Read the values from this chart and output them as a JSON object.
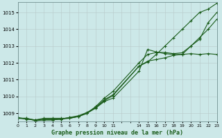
{
  "title": "Graphe pression niveau de la mer (hPa)",
  "bg_color": "#cce8e8",
  "grid_color": "#b8c8c8",
  "line_color": "#1a5c1a",
  "xlim": [
    0,
    23
  ],
  "ylim": [
    1008.5,
    1015.6
  ],
  "yticks": [
    1009,
    1010,
    1011,
    1012,
    1013,
    1014,
    1015
  ],
  "xtick_positions": [
    0,
    1,
    2,
    3,
    4,
    5,
    6,
    7,
    8,
    9,
    10,
    11,
    14,
    15,
    16,
    17,
    18,
    19,
    20,
    21,
    22,
    23
  ],
  "xtick_labels": [
    "0",
    "1",
    "2",
    "3",
    "4",
    "5",
    "6",
    "7",
    "8",
    "9",
    "10",
    "11",
    "14",
    "15",
    "16",
    "17",
    "18",
    "19",
    "20",
    "21",
    "22",
    "23"
  ],
  "series1_x": [
    0,
    1,
    2,
    3,
    4,
    5,
    6,
    7,
    8,
    9,
    10,
    11,
    14,
    15,
    16,
    17,
    18,
    19,
    20,
    21,
    22,
    23
  ],
  "series1_y": [
    1008.7,
    1008.7,
    1008.6,
    1008.7,
    1008.7,
    1008.7,
    1008.7,
    1008.8,
    1009.0,
    1009.35,
    1009.8,
    1010.1,
    1011.8,
    1012.05,
    1012.5,
    1013.0,
    1013.5,
    1014.0,
    1014.5,
    1015.0,
    1015.2,
    1015.55
  ],
  "series2_x": [
    0,
    1,
    2,
    3,
    4,
    5,
    6,
    7,
    8,
    9,
    10,
    11,
    14,
    15,
    16,
    17,
    18,
    19,
    20,
    21,
    22,
    23
  ],
  "series2_y": [
    1008.7,
    1008.7,
    1008.55,
    1008.6,
    1008.6,
    1008.65,
    1008.7,
    1008.8,
    1009.0,
    1009.3,
    1009.7,
    1009.9,
    1011.5,
    1012.8,
    1012.65,
    1012.55,
    1012.5,
    1012.5,
    1013.0,
    1013.4,
    1014.4,
    1015.0
  ],
  "series3_x": [
    0,
    1,
    2,
    3,
    4,
    5,
    6,
    7,
    8,
    9,
    10,
    11,
    14,
    15,
    16,
    17,
    18,
    19,
    20,
    21,
    22,
    23
  ],
  "series3_y": [
    1008.7,
    1008.65,
    1008.6,
    1008.6,
    1008.6,
    1008.65,
    1008.75,
    1008.8,
    1009.0,
    1009.4,
    1009.9,
    1010.3,
    1012.0,
    1012.5,
    1012.62,
    1012.62,
    1012.55,
    1012.6,
    1013.0,
    1013.5,
    1014.0,
    1014.6
  ],
  "series4_x": [
    0,
    1,
    2,
    3,
    4,
    5,
    6,
    7,
    8,
    9,
    10,
    11,
    14,
    15,
    16,
    17,
    18,
    19,
    20,
    21,
    22,
    23
  ],
  "series4_y": [
    1008.75,
    1008.65,
    1008.6,
    1008.65,
    1008.65,
    1008.65,
    1008.75,
    1008.85,
    1009.05,
    1009.35,
    1009.75,
    1010.05,
    1011.8,
    1012.1,
    1012.2,
    1012.3,
    1012.45,
    1012.5,
    1012.55,
    1012.5,
    1012.55,
    1012.5
  ]
}
